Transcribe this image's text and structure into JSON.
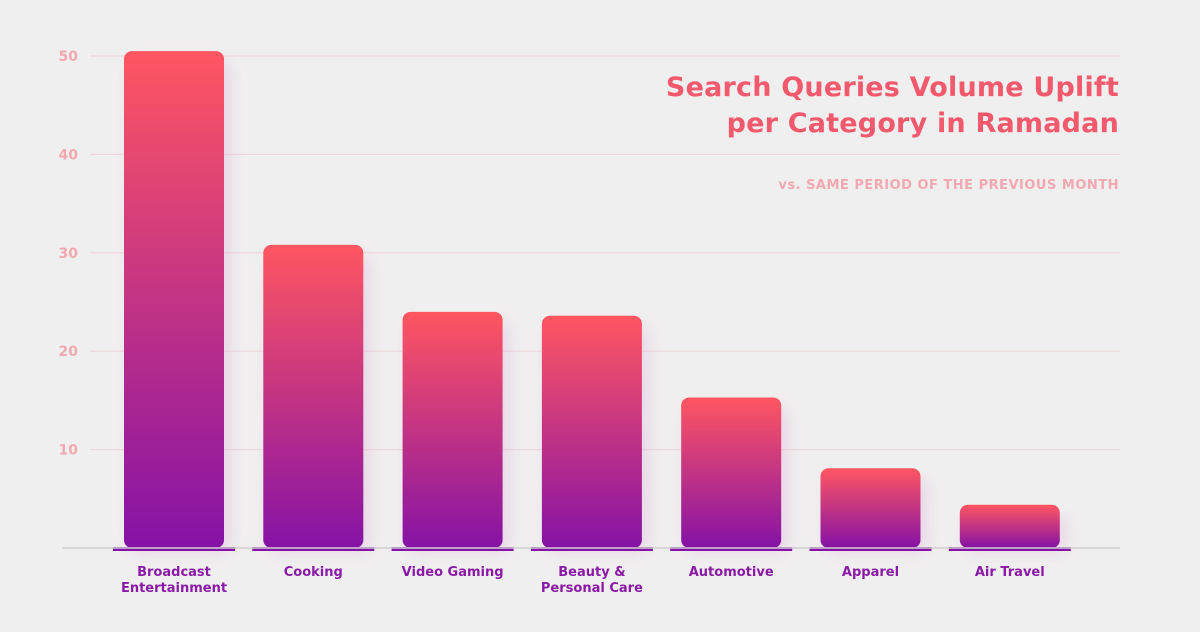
{
  "chart_data": {
    "type": "bar",
    "title_lines": [
      "Search Queries Volume Uplift",
      "per Category in Ramadan"
    ],
    "subtitle": "vs. SAME PERIOD OF THE PREVIOUS MONTH",
    "xlabel": "",
    "ylabel": "",
    "ylim": [
      0,
      50
    ],
    "yticks": [
      10,
      20,
      30,
      40,
      50
    ],
    "grid": true,
    "categories": [
      [
        "Broadcast",
        "Entertainment"
      ],
      [
        "Cooking"
      ],
      [
        "Video Gaming"
      ],
      [
        "Beauty &",
        "Personal Care"
      ],
      [
        "Automotive"
      ],
      [
        "Apparel"
      ],
      [
        "Air Travel"
      ]
    ],
    "values": [
      50.5,
      30.8,
      24.0,
      23.6,
      15.3,
      8.1,
      4.4
    ]
  },
  "colors": {
    "background": "#f0efef",
    "grid": "#f0d6da",
    "axis": "#cfcfcf",
    "tick_label": "#f2a8b0",
    "category_label": "#8a1aa6",
    "bar_top": "#ff5661",
    "bar_bottom": "#8512a6",
    "title": "#f2596d",
    "subtitle": "#f2a8b0"
  }
}
